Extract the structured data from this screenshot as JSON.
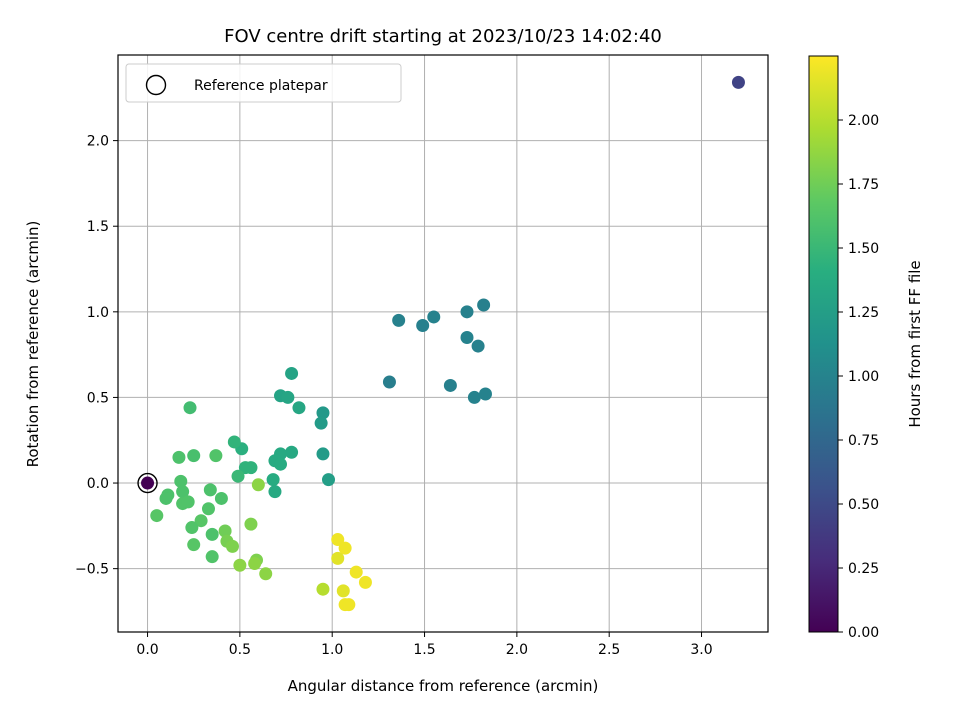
{
  "chart_data": {
    "type": "scatter",
    "title": "FOV centre drift starting at 2023/10/23 14:02:40",
    "xlabel": "Angular distance from reference (arcmin)",
    "ylabel": "Rotation from reference (arcmin)",
    "xlim": [
      -0.16,
      3.36
    ],
    "ylim": [
      -0.87,
      2.5
    ],
    "xticks": [
      0.0,
      0.5,
      1.0,
      1.5,
      2.0,
      2.5,
      3.0
    ],
    "xtick_labels": [
      "0.0",
      "0.5",
      "1.0",
      "1.5",
      "2.0",
      "2.5",
      "3.0"
    ],
    "yticks": [
      -0.5,
      0.0,
      0.5,
      1.0,
      1.5,
      2.0
    ],
    "ytick_labels": [
      "−0.5",
      "0.0",
      "0.5",
      "1.0",
      "1.5",
      "2.0"
    ],
    "grid": true,
    "legend": {
      "placement": "upper-left",
      "entries": [
        {
          "label": "Reference platepar",
          "marker": "open-circle"
        }
      ]
    },
    "reference_point": {
      "x": 0.0,
      "y": 0.0
    },
    "colorbar": {
      "label": "Hours from first FF file",
      "colormap": "viridis",
      "range": [
        0.0,
        2.25
      ],
      "ticks": [
        0.0,
        0.25,
        0.5,
        0.75,
        1.0,
        1.25,
        1.5,
        1.75,
        2.0
      ],
      "tick_labels": [
        "0.00",
        "0.25",
        "0.50",
        "0.75",
        "1.00",
        "1.25",
        "1.50",
        "1.75",
        "2.00"
      ]
    },
    "points": [
      {
        "x": 0.0,
        "y": 0.0,
        "t": 0.0
      },
      {
        "x": 3.2,
        "y": 2.34,
        "t": 0.45
      },
      {
        "x": 1.31,
        "y": 0.59,
        "t": 0.95
      },
      {
        "x": 1.36,
        "y": 0.95,
        "t": 0.98
      },
      {
        "x": 1.49,
        "y": 0.92,
        "t": 0.97
      },
      {
        "x": 1.55,
        "y": 0.97,
        "t": 0.99
      },
      {
        "x": 1.64,
        "y": 0.57,
        "t": 0.97
      },
      {
        "x": 1.73,
        "y": 1.0,
        "t": 0.98
      },
      {
        "x": 1.82,
        "y": 1.04,
        "t": 0.97
      },
      {
        "x": 1.73,
        "y": 0.85,
        "t": 0.99
      },
      {
        "x": 1.79,
        "y": 0.8,
        "t": 0.98
      },
      {
        "x": 1.77,
        "y": 0.5,
        "t": 0.99
      },
      {
        "x": 1.83,
        "y": 0.52,
        "t": 0.99
      },
      {
        "x": 0.95,
        "y": 0.41,
        "t": 1.2
      },
      {
        "x": 0.94,
        "y": 0.35,
        "t": 1.22
      },
      {
        "x": 0.95,
        "y": 0.17,
        "t": 1.22
      },
      {
        "x": 0.98,
        "y": 0.02,
        "t": 1.25
      },
      {
        "x": 0.78,
        "y": 0.64,
        "t": 1.3
      },
      {
        "x": 0.72,
        "y": 0.51,
        "t": 1.3
      },
      {
        "x": 0.76,
        "y": 0.5,
        "t": 1.32
      },
      {
        "x": 0.82,
        "y": 0.44,
        "t": 1.33
      },
      {
        "x": 0.78,
        "y": 0.18,
        "t": 1.35
      },
      {
        "x": 0.72,
        "y": 0.17,
        "t": 1.36
      },
      {
        "x": 0.69,
        "y": 0.13,
        "t": 1.37
      },
      {
        "x": 0.72,
        "y": 0.11,
        "t": 1.38
      },
      {
        "x": 0.68,
        "y": 0.02,
        "t": 1.38
      },
      {
        "x": 0.69,
        "y": -0.05,
        "t": 1.36
      },
      {
        "x": 0.51,
        "y": 0.2,
        "t": 1.42
      },
      {
        "x": 0.53,
        "y": 0.09,
        "t": 1.45
      },
      {
        "x": 0.56,
        "y": 0.09,
        "t": 1.45
      },
      {
        "x": 0.47,
        "y": 0.24,
        "t": 1.46
      },
      {
        "x": 0.49,
        "y": 0.04,
        "t": 1.5
      },
      {
        "x": 0.23,
        "y": 0.44,
        "t": 1.55
      },
      {
        "x": 0.25,
        "y": 0.16,
        "t": 1.58
      },
      {
        "x": 0.17,
        "y": 0.15,
        "t": 1.6
      },
      {
        "x": 0.37,
        "y": 0.16,
        "t": 1.62
      },
      {
        "x": 0.18,
        "y": 0.01,
        "t": 1.6
      },
      {
        "x": 0.19,
        "y": -0.05,
        "t": 1.6
      },
      {
        "x": 0.11,
        "y": -0.07,
        "t": 1.6
      },
      {
        "x": 0.1,
        "y": -0.09,
        "t": 1.6
      },
      {
        "x": 0.19,
        "y": -0.12,
        "t": 1.62
      },
      {
        "x": 0.22,
        "y": -0.11,
        "t": 1.62
      },
      {
        "x": 0.34,
        "y": -0.04,
        "t": 1.6
      },
      {
        "x": 0.4,
        "y": -0.09,
        "t": 1.6
      },
      {
        "x": 0.33,
        "y": -0.15,
        "t": 1.62
      },
      {
        "x": 0.29,
        "y": -0.22,
        "t": 1.65
      },
      {
        "x": 0.24,
        "y": -0.26,
        "t": 1.62
      },
      {
        "x": 0.35,
        "y": -0.3,
        "t": 1.6
      },
      {
        "x": 0.25,
        "y": -0.36,
        "t": 1.65
      },
      {
        "x": 0.35,
        "y": -0.43,
        "t": 1.62
      },
      {
        "x": 0.05,
        "y": -0.19,
        "t": 1.65
      },
      {
        "x": 0.42,
        "y": -0.28,
        "t": 1.75
      },
      {
        "x": 0.43,
        "y": -0.34,
        "t": 1.78
      },
      {
        "x": 0.46,
        "y": -0.37,
        "t": 1.8
      },
      {
        "x": 0.56,
        "y": -0.24,
        "t": 1.8
      },
      {
        "x": 0.6,
        "y": -0.01,
        "t": 1.85
      },
      {
        "x": 0.59,
        "y": -0.45,
        "t": 1.8
      },
      {
        "x": 0.58,
        "y": -0.47,
        "t": 1.85
      },
      {
        "x": 0.5,
        "y": -0.48,
        "t": 1.85
      },
      {
        "x": 0.64,
        "y": -0.53,
        "t": 1.85
      },
      {
        "x": 0.95,
        "y": -0.62,
        "t": 2.0
      },
      {
        "x": 1.03,
        "y": -0.33,
        "t": 2.2
      },
      {
        "x": 1.07,
        "y": -0.38,
        "t": 2.2
      },
      {
        "x": 1.03,
        "y": -0.44,
        "t": 2.15
      },
      {
        "x": 1.13,
        "y": -0.52,
        "t": 2.2
      },
      {
        "x": 1.18,
        "y": -0.58,
        "t": 2.2
      },
      {
        "x": 1.06,
        "y": -0.63,
        "t": 2.15
      },
      {
        "x": 1.07,
        "y": -0.71,
        "t": 2.2
      },
      {
        "x": 1.09,
        "y": -0.71,
        "t": 2.2
      }
    ]
  }
}
